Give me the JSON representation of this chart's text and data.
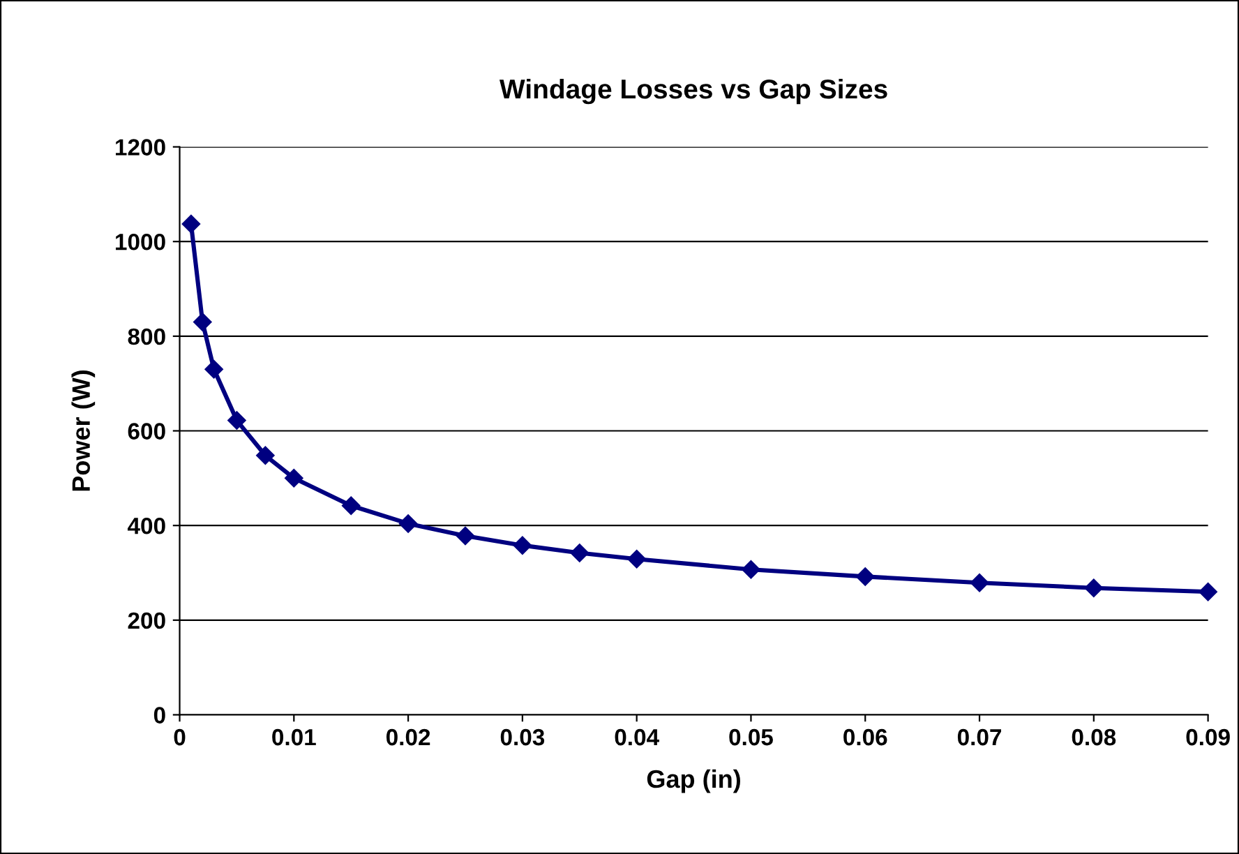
{
  "chart_data": {
    "type": "line",
    "title": "Windage Losses vs Gap Sizes",
    "xlabel": "Gap (in)",
    "ylabel": "Power (W)",
    "x": [
      0.001,
      0.002,
      0.003,
      0.005,
      0.0075,
      0.01,
      0.015,
      0.02,
      0.025,
      0.03,
      0.035,
      0.04,
      0.05,
      0.06,
      0.07,
      0.08,
      0.09
    ],
    "series": [
      {
        "color": "#000080",
        "values": [
          1037,
          830,
          730,
          622,
          548,
          500,
          442,
          404,
          378,
          358,
          342,
          329,
          307,
          292,
          279,
          268,
          260
        ]
      }
    ],
    "xlim": [
      0,
      0.09
    ],
    "xticks": [
      0,
      0.01,
      0.02,
      0.03,
      0.04,
      0.05,
      0.06,
      0.07,
      0.08,
      0.09
    ],
    "ylim": [
      0,
      1200
    ],
    "yticks": [
      0,
      200,
      400,
      600,
      800,
      1000,
      1200
    ],
    "grid": "y",
    "legend": false,
    "marker": "diamond",
    "line_style": "solid"
  }
}
